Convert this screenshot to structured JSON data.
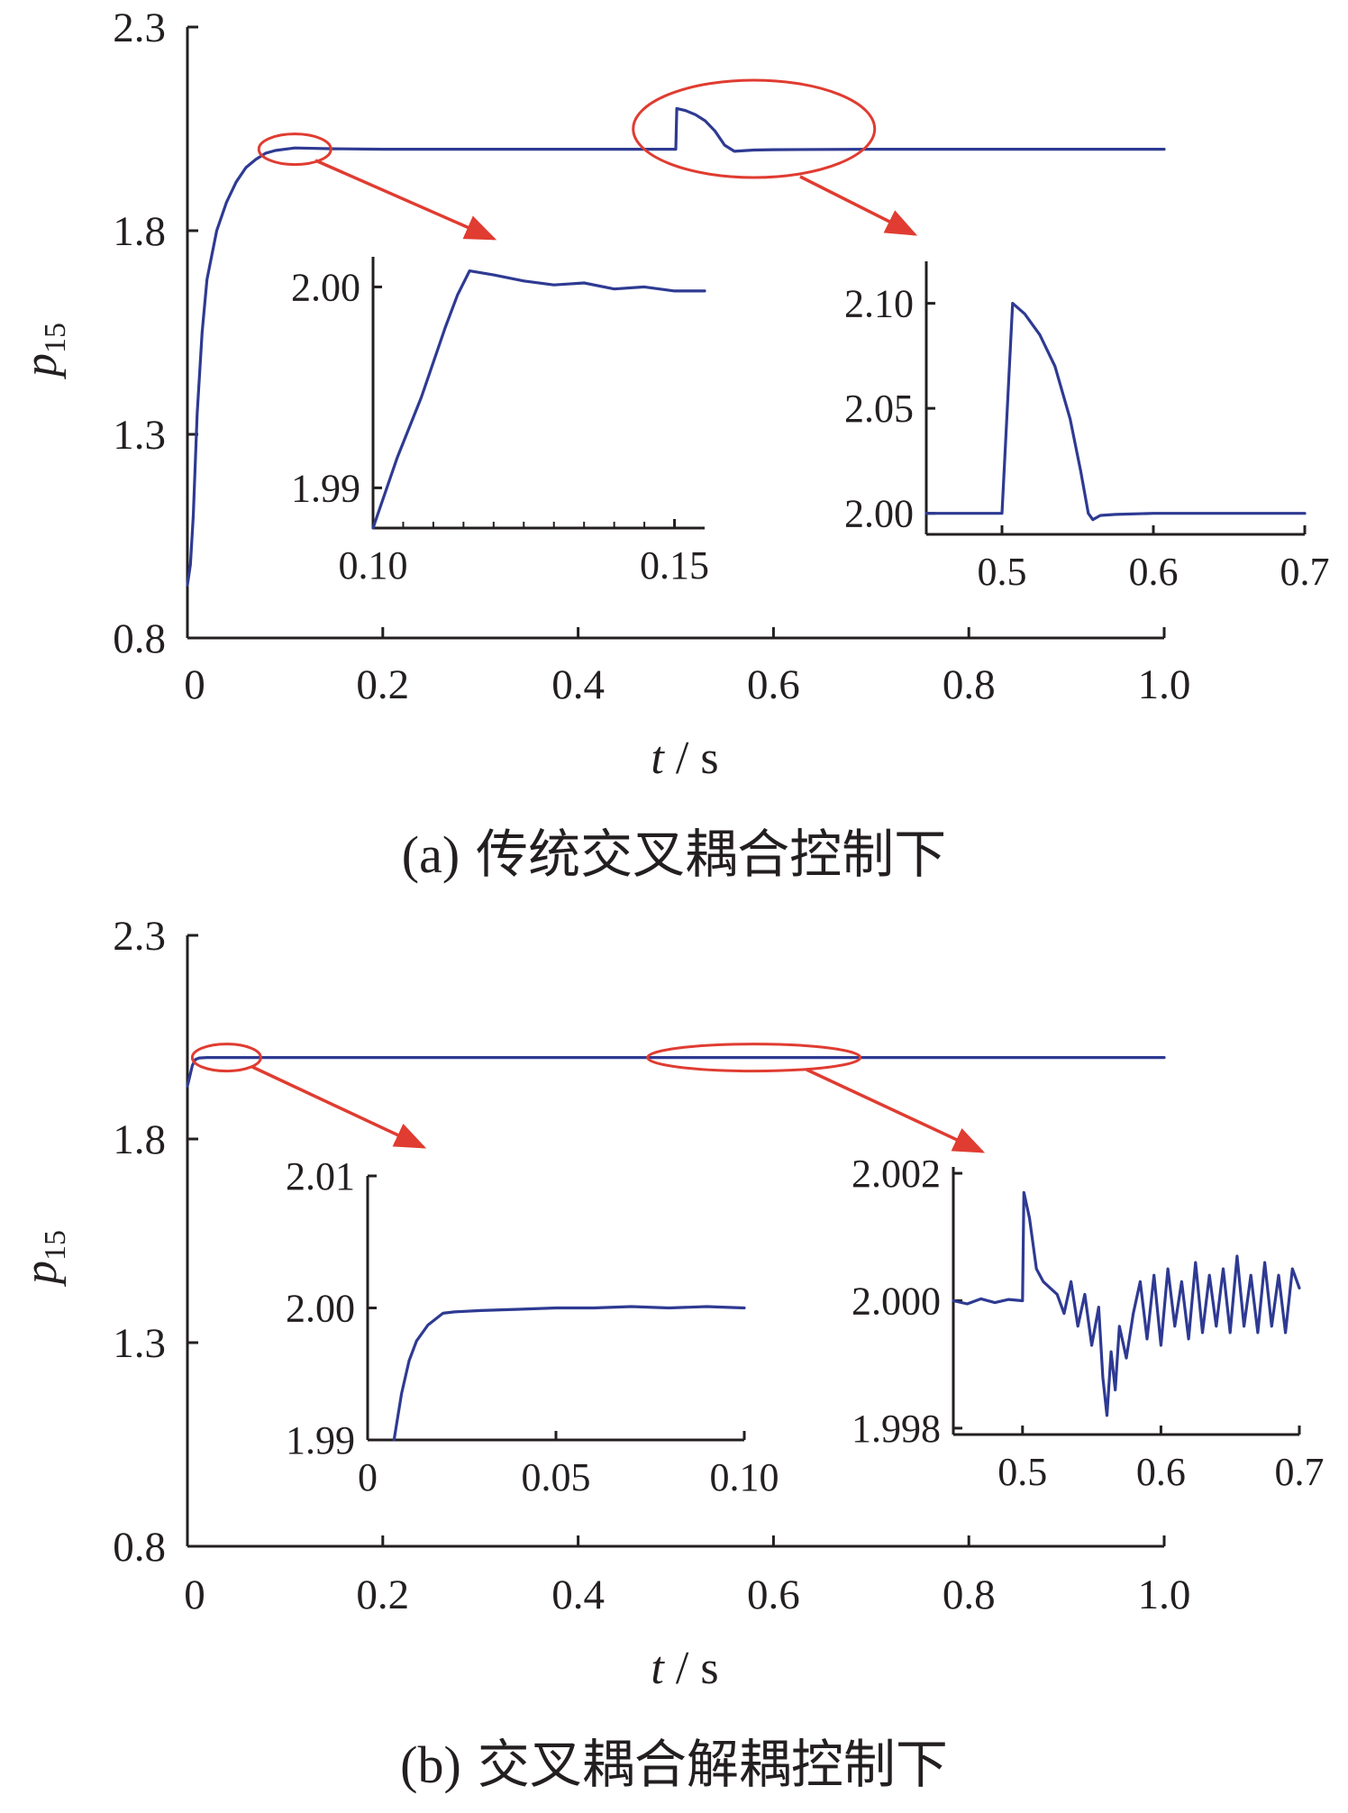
{
  "colors": {
    "series": "#2e3a92",
    "annotation": "#e03c31",
    "axis": "#231f20"
  },
  "chart_data": [
    {
      "id": "a",
      "type": "line",
      "caption_label": "(a)",
      "caption_text": "传统交叉耦合控制下",
      "xlabel_italic": "t",
      "xlabel_unit": " / s",
      "ylabel_main": "p",
      "ylabel_sub": "15",
      "xlim": [
        0,
        1.0
      ],
      "ylim": [
        0.8,
        2.3
      ],
      "x_ticks": [
        0,
        0.2,
        0.4,
        0.6,
        0.8,
        1.0
      ],
      "x_tick_labels": [
        "0",
        "0.2",
        "0.4",
        "0.6",
        "0.8",
        "1.0"
      ],
      "y_ticks": [
        0.8,
        1.3,
        1.8,
        2.3
      ],
      "y_tick_labels": [
        "0.8",
        "1.3",
        "1.8",
        "2.3"
      ],
      "series": [
        {
          "x": [
            0,
            0.003,
            0.006,
            0.01,
            0.015,
            0.02,
            0.03,
            0.04,
            0.05,
            0.06,
            0.07,
            0.08,
            0.09,
            0.1,
            0.11,
            0.15,
            0.2,
            0.3,
            0.4,
            0.5,
            0.501,
            0.51,
            0.52,
            0.53,
            0.54,
            0.55,
            0.56,
            0.58,
            0.6,
            0.7,
            0.8,
            0.9,
            1.0
          ],
          "y": [
            0.93,
            0.98,
            1.1,
            1.35,
            1.55,
            1.68,
            1.8,
            1.87,
            1.92,
            1.955,
            1.975,
            1.99,
            1.997,
            2.0,
            2.003,
            2.001,
            2.0,
            2.0,
            2.0,
            2.0,
            2.1,
            2.095,
            2.085,
            2.07,
            2.045,
            2.01,
            1.995,
            1.998,
            1.999,
            2.0,
            2.0,
            2.0,
            2.0
          ]
        }
      ],
      "annotations": [
        {
          "type": "ellipse",
          "center": [
            0.11,
            2.0
          ]
        },
        {
          "type": "ellipse",
          "center": [
            0.58,
            2.05
          ]
        }
      ],
      "insets": [
        {
          "xlim": [
            0.1,
            0.155
          ],
          "ylim": [
            1.988,
            2.0015
          ],
          "x_ticks": [
            0.1,
            0.15
          ],
          "x_tick_labels": [
            "0.10",
            "0.15"
          ],
          "y_ticks": [
            1.99,
            2.0
          ],
          "y_tick_labels": [
            "1.99",
            "2.00"
          ],
          "x_minor": [
            0.105,
            0.11,
            0.115,
            0.12,
            0.125,
            0.13,
            0.135,
            0.14,
            0.145
          ],
          "x": [
            0.1,
            0.104,
            0.108,
            0.112,
            0.114,
            0.116,
            0.118,
            0.12,
            0.125,
            0.13,
            0.135,
            0.14,
            0.145,
            0.15,
            0.155
          ],
          "y": [
            1.988,
            1.9915,
            1.9945,
            1.998,
            1.9996,
            2.0008,
            2.0007,
            2.0006,
            2.0003,
            2.0001,
            2.0002,
            1.9999,
            2.0,
            1.9998,
            1.9998
          ]
        },
        {
          "xlim": [
            0.45,
            0.7
          ],
          "ylim": [
            1.99,
            2.12
          ],
          "x_ticks": [
            0.5,
            0.6,
            0.7
          ],
          "x_tick_labels": [
            "0.5",
            "0.6",
            "0.7"
          ],
          "y_ticks": [
            2.0,
            2.05,
            2.1
          ],
          "y_tick_labels": [
            "2.00",
            "2.05",
            "2.10"
          ],
          "x": [
            0.45,
            0.5,
            0.507,
            0.515,
            0.525,
            0.535,
            0.545,
            0.552,
            0.557,
            0.56,
            0.565,
            0.575,
            0.6,
            0.65,
            0.7
          ],
          "y": [
            2.0,
            2.0,
            2.1,
            2.095,
            2.085,
            2.07,
            2.045,
            2.02,
            2.0,
            1.997,
            1.999,
            1.9995,
            2.0,
            2.0,
            2.0
          ]
        }
      ]
    },
    {
      "id": "b",
      "type": "line",
      "caption_label": "(b)",
      "caption_text": "交叉耦合解耦控制下",
      "xlabel_italic": "t",
      "xlabel_unit": " / s",
      "ylabel_main": "p",
      "ylabel_sub": "15",
      "xlim": [
        0,
        1.0
      ],
      "ylim": [
        0.8,
        2.3
      ],
      "x_ticks": [
        0,
        0.2,
        0.4,
        0.6,
        0.8,
        1.0
      ],
      "x_tick_labels": [
        "0",
        "0.2",
        "0.4",
        "0.6",
        "0.8",
        "1.0"
      ],
      "y_ticks": [
        0.8,
        1.3,
        1.8,
        2.3
      ],
      "y_tick_labels": [
        "0.8",
        "1.3",
        "1.8",
        "2.3"
      ],
      "series": [
        {
          "x": [
            0,
            0.002,
            0.005,
            0.008,
            0.012,
            0.02,
            0.04,
            0.1,
            0.3,
            0.5,
            0.6,
            0.8,
            1.0
          ],
          "y": [
            1.93,
            1.95,
            1.98,
            1.995,
            1.999,
            2.0,
            2.0,
            2.0,
            2.0,
            2.0,
            2.0,
            2.0,
            2.0
          ]
        }
      ],
      "annotations": [
        {
          "type": "ellipse",
          "center": [
            0.04,
            2.0
          ]
        },
        {
          "type": "ellipse",
          "center": [
            0.58,
            2.0
          ]
        }
      ],
      "insets": [
        {
          "xlim": [
            0,
            0.1
          ],
          "ylim": [
            1.99,
            2.01
          ],
          "x_ticks": [
            0,
            0.05,
            0.1
          ],
          "x_tick_labels": [
            "0",
            "0.05",
            "0.10"
          ],
          "y_ticks": [
            1.99,
            2.0,
            2.01
          ],
          "y_tick_labels": [
            "1.99",
            "2.00",
            "2.01"
          ],
          "x": [
            0.007,
            0.009,
            0.011,
            0.013,
            0.016,
            0.02,
            0.023,
            0.03,
            0.04,
            0.05,
            0.06,
            0.07,
            0.08,
            0.09,
            0.1
          ],
          "y": [
            1.99,
            1.9935,
            1.996,
            1.9975,
            1.9987,
            1.9996,
            1.9997,
            1.9998,
            1.9999,
            2.0,
            2.0,
            2.0001,
            2.0,
            2.0001,
            2.0
          ]
        },
        {
          "xlim": [
            0.45,
            0.7
          ],
          "ylim": [
            1.9979,
            2.0021
          ],
          "x_ticks": [
            0.5,
            0.6,
            0.7
          ],
          "x_tick_labels": [
            "0.5",
            "0.6",
            "0.7"
          ],
          "y_ticks": [
            1.998,
            2.0,
            2.002
          ],
          "y_tick_labels": [
            "1.998",
            "2.000",
            "2.002"
          ],
          "x": [
            0.45,
            0.46,
            0.47,
            0.48,
            0.49,
            0.5,
            0.501,
            0.505,
            0.51,
            0.515,
            0.52,
            0.525,
            0.53,
            0.535,
            0.54,
            0.545,
            0.55,
            0.555,
            0.558,
            0.561,
            0.564,
            0.567,
            0.57,
            0.575,
            0.58,
            0.585,
            0.59,
            0.595,
            0.6,
            0.605,
            0.61,
            0.615,
            0.62,
            0.625,
            0.63,
            0.635,
            0.64,
            0.645,
            0.65,
            0.655,
            0.66,
            0.665,
            0.67,
            0.675,
            0.68,
            0.685,
            0.69,
            0.695,
            0.7
          ],
          "y": [
            2.0,
            1.99995,
            2.00003,
            1.99997,
            2.00002,
            2.0,
            2.0017,
            2.0013,
            2.0005,
            2.0003,
            2.0002,
            2.0001,
            1.9998,
            2.0003,
            1.9996,
            2.0001,
            1.9993,
            1.9999,
            1.9988,
            1.9982,
            1.9992,
            1.9986,
            1.9996,
            1.9991,
            1.9998,
            2.0003,
            1.9994,
            2.0004,
            1.9993,
            2.0005,
            1.9996,
            2.0003,
            1.9994,
            2.0006,
            1.9995,
            2.0004,
            1.9996,
            2.0005,
            1.9995,
            2.0007,
            1.9996,
            2.0004,
            1.9995,
            2.0006,
            1.9996,
            2.0004,
            1.9995,
            2.0005,
            2.0002
          ]
        }
      ]
    }
  ]
}
